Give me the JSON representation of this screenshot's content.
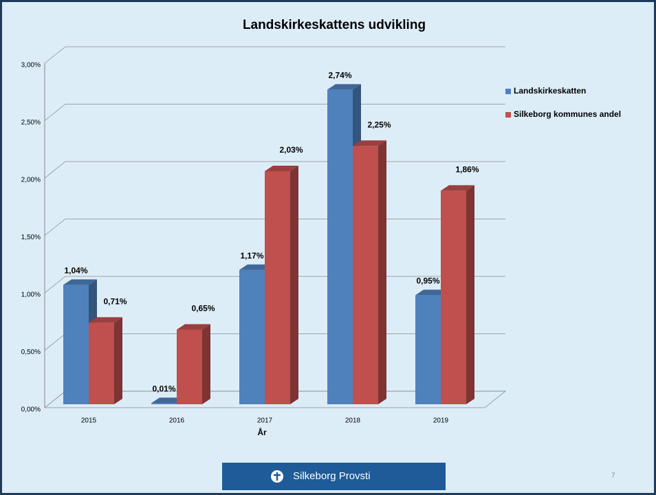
{
  "chart_data": {
    "type": "bar3d",
    "title": "Landskirkeskattens udvikling",
    "x_label": "År",
    "categories": [
      "2015",
      "2016",
      "2017",
      "2018",
      "2019"
    ],
    "series": [
      {
        "name": "Landskirkeskatten",
        "color": "#4f81bd",
        "values": [
          1.04,
          0.01,
          1.17,
          2.74,
          0.95
        ],
        "value_labels": [
          "1,04%",
          "0,01%",
          "1,17%",
          "2,74%",
          "0,95%"
        ]
      },
      {
        "name": "Silkeborg kommunes andel",
        "color": "#c0504d",
        "values": [
          0.71,
          0.65,
          2.03,
          2.25,
          1.86
        ],
        "value_labels": [
          "0,71%",
          "0,65%",
          "2,03%",
          "2,25%",
          "1,86%"
        ]
      }
    ],
    "ylim": [
      0,
      3
    ],
    "yticks": [
      {
        "value": 0,
        "label": "0,00%"
      },
      {
        "value": 0.5,
        "label": "0,50%"
      },
      {
        "value": 1,
        "label": "1,00%"
      },
      {
        "value": 1.5,
        "label": "1,50%"
      },
      {
        "value": 2,
        "label": "2,00%"
      },
      {
        "value": 2.5,
        "label": "2,50%"
      },
      {
        "value": 3,
        "label": "3,00%"
      }
    ],
    "grid": true,
    "legend": "right"
  },
  "footer": {
    "label": "Silkeborg Provsti",
    "page": "7"
  }
}
